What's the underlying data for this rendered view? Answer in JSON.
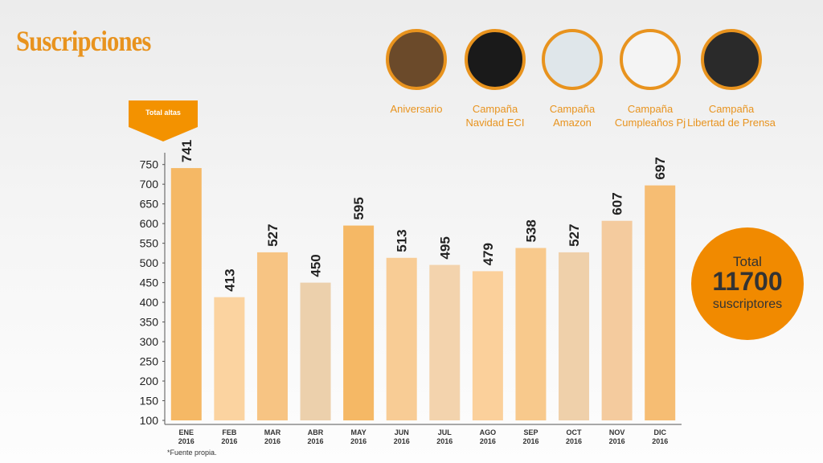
{
  "header": {
    "title": "Suscripciones"
  },
  "campaigns": [
    {
      "label": [
        "Aniversario"
      ]
    },
    {
      "label": [
        "Campaña",
        "Navidad ECI"
      ]
    },
    {
      "label": [
        "Campaña",
        "Amazon"
      ]
    },
    {
      "label": [
        "Campaña",
        "Cumpleaños Pj"
      ]
    },
    {
      "label": [
        "Campaña",
        "Libertad de Prensa"
      ]
    }
  ],
  "highlight": "Total altas",
  "total": {
    "label": "Total",
    "value": "11700",
    "unit": "suscriptores"
  },
  "footnote": "*Fuente propia.",
  "chart_data": {
    "type": "bar",
    "categories": [
      "ENE 2016",
      "FEB 2016",
      "MAR 2016",
      "ABR 2016",
      "MAY 2016",
      "JUN 2016",
      "JUL 2016",
      "AGO 2016",
      "SEP 2016",
      "OCT 2016",
      "NOV 2016",
      "DIC 2016"
    ],
    "values": [
      741,
      413,
      527,
      450,
      595,
      513,
      495,
      479,
      538,
      527,
      607,
      697
    ],
    "colors": [
      "#f5b865",
      "#fbd3a0",
      "#f7c483",
      "#ecd0ac",
      "#f5b865",
      "#f8cc95",
      "#f3d3ad",
      "#fbd09b",
      "#f8c98c",
      "#efd0aa",
      "#f4cb9e",
      "#f6bd73"
    ],
    "ylim": [
      100,
      780
    ],
    "yticks": [
      100,
      150,
      200,
      250,
      300,
      350,
      400,
      450,
      500,
      550,
      600,
      650,
      700,
      750
    ],
    "grid": false
  }
}
